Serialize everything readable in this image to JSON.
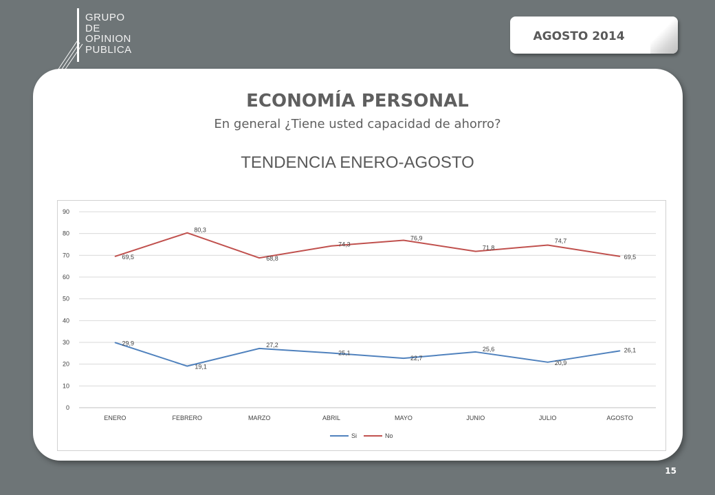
{
  "logo": {
    "lines": [
      "GRUPO",
      "DE",
      "OPINION",
      "PUBLICA"
    ]
  },
  "badge": {
    "date": "AGOSTO  2014"
  },
  "slide": {
    "title": "ECONOMÍA PERSONAL",
    "subtitle": "En general ¿Tiene usted capacidad de ahorro?",
    "trend_label": "TENDENCIA ENERO-AGOSTO",
    "page_number": "15"
  },
  "chart_data": {
    "type": "line",
    "categories": [
      "ENERO",
      "FEBRERO",
      "MARZO",
      "ABRIL",
      "MAYO",
      "JUNIO",
      "JULIO",
      "AGOSTO"
    ],
    "ylim": [
      0,
      90
    ],
    "yticks": [
      0,
      10,
      20,
      30,
      40,
      50,
      60,
      70,
      80,
      90
    ],
    "grid": true,
    "legend": "bottom",
    "series": [
      {
        "name": "Si",
        "color": "#4f81bd",
        "values": [
          29.9,
          19.1,
          27.2,
          25.1,
          22.7,
          25.6,
          20.9,
          26.1
        ],
        "labels": [
          "29,9",
          "19,1",
          "27,2",
          "25,1",
          "22,7",
          "25,6",
          "20,9",
          "26,1"
        ]
      },
      {
        "name": "No",
        "color": "#c0504d",
        "values": [
          69.5,
          80.3,
          68.8,
          74.3,
          76.9,
          71.8,
          74.7,
          69.5
        ],
        "labels": [
          "69,5",
          "80,3",
          "68,8",
          "74,3",
          "76,9",
          "71,8",
          "74,7",
          "69,5"
        ]
      }
    ]
  }
}
